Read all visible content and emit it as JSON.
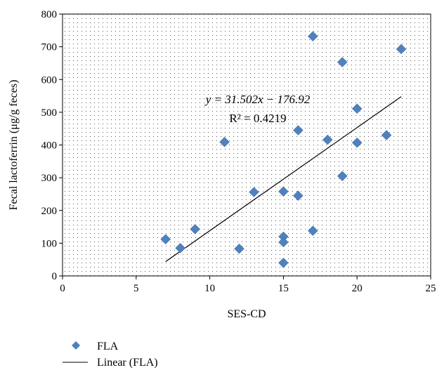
{
  "chart_data": {
    "type": "scatter",
    "xlabel": "SES-CD",
    "ylabel": "Fecal lactoferrin (μg/g feces)",
    "xlim": [
      0,
      25
    ],
    "ylim": [
      0,
      800
    ],
    "xticks": [
      0,
      5,
      10,
      15,
      20,
      25
    ],
    "yticks": [
      0,
      100,
      200,
      300,
      400,
      500,
      600,
      700,
      800
    ],
    "grid": "dotted background",
    "series": [
      {
        "name": "FLA",
        "marker": "diamond",
        "color": "#4f81bd",
        "points": [
          {
            "x": 7,
            "y": 112
          },
          {
            "x": 8,
            "y": 85
          },
          {
            "x": 9,
            "y": 143
          },
          {
            "x": 11,
            "y": 409
          },
          {
            "x": 12,
            "y": 83
          },
          {
            "x": 13,
            "y": 256
          },
          {
            "x": 15,
            "y": 258
          },
          {
            "x": 15,
            "y": 120
          },
          {
            "x": 15,
            "y": 103
          },
          {
            "x": 15,
            "y": 40
          },
          {
            "x": 16,
            "y": 445
          },
          {
            "x": 16,
            "y": 245
          },
          {
            "x": 17,
            "y": 732
          },
          {
            "x": 17,
            "y": 138
          },
          {
            "x": 18,
            "y": 416
          },
          {
            "x": 19,
            "y": 653
          },
          {
            "x": 19,
            "y": 305
          },
          {
            "x": 20,
            "y": 511
          },
          {
            "x": 20,
            "y": 407
          },
          {
            "x": 22,
            "y": 430
          },
          {
            "x": 23,
            "y": 693
          }
        ]
      }
    ],
    "trendline": {
      "name": "Linear (FLA)",
      "slope": 31.502,
      "intercept": -176.92,
      "x_range": [
        7,
        23
      ],
      "color": "#000000"
    },
    "annotation": {
      "equation": "y = 31.502x − 176.92",
      "r_squared": "R² = 0.4219"
    },
    "legend_position": "bottom-left"
  }
}
